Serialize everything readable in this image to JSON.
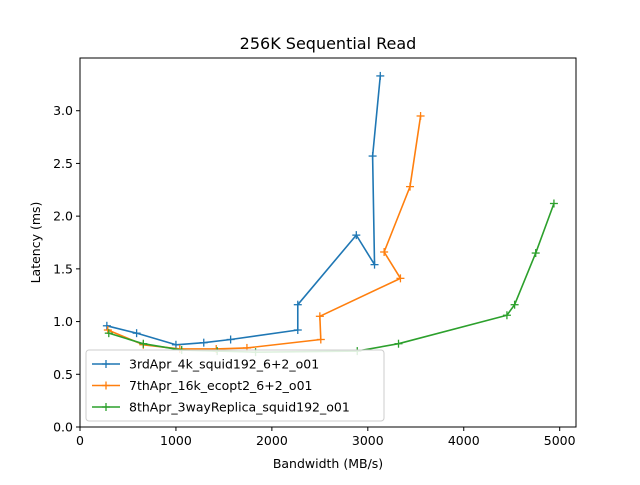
{
  "chart_data": {
    "type": "line",
    "title": "256K  Sequential Read",
    "xlabel": "Bandwidth (MB/s)",
    "ylabel": "Latency (ms)",
    "xlim": [
      0,
      5170
    ],
    "ylim": [
      0,
      3.5
    ],
    "xticks": [
      "0",
      "1000",
      "2000",
      "3000",
      "4000",
      "5000"
    ],
    "yticks": [
      "0.0",
      "0.5",
      "1.0",
      "1.5",
      "2.0",
      "2.5",
      "3.0"
    ],
    "grid": false,
    "legend_position": "lower-left",
    "marker": "plus",
    "series": [
      {
        "name": "3rdApr_4k_squid192_6+2_o01",
        "color": "#1f77b4",
        "x": [
          280,
          590,
          1000,
          1290,
          1570,
          2270,
          2270,
          2880,
          3070,
          3050,
          3130
        ],
        "y": [
          0.96,
          0.89,
          0.78,
          0.8,
          0.83,
          0.92,
          1.16,
          1.82,
          1.54,
          2.57,
          3.33
        ]
      },
      {
        "name": "7thApr_16k_ecopt2_6+2_o01",
        "color": "#ff7f0e",
        "x": [
          290,
          660,
          1040,
          1420,
          1740,
          2510,
          2500,
          3340,
          3170,
          3440,
          3550
        ],
        "y": [
          0.92,
          0.78,
          0.74,
          0.74,
          0.75,
          0.83,
          1.05,
          1.41,
          1.66,
          2.28,
          2.95
        ]
      },
      {
        "name": "8thApr_3wayReplica_squid192_o01",
        "color": "#2ca02c",
        "x": [
          300,
          660,
          1060,
          1430,
          1830,
          2890,
          3320,
          4450,
          4530,
          4750,
          4940
        ],
        "y": [
          0.89,
          0.79,
          0.73,
          0.72,
          0.71,
          0.72,
          0.79,
          1.06,
          1.16,
          1.65,
          2.12
        ]
      }
    ]
  }
}
